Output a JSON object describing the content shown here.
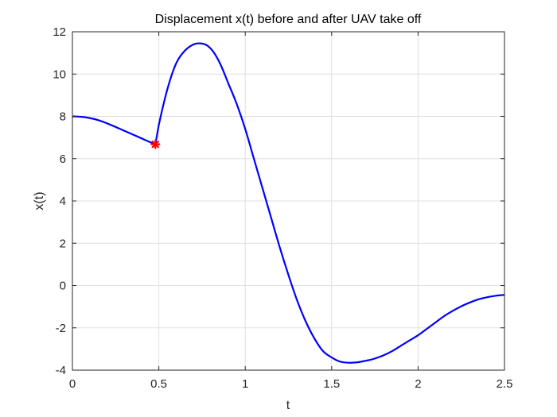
{
  "chart_data": {
    "type": "line",
    "title": "Displacement x(t) before and after UAV take off",
    "xlabel": "t",
    "ylabel": "x(t)",
    "xlim": [
      0,
      2.5
    ],
    "ylim": [
      -4,
      12
    ],
    "xticks": [
      0,
      0.5,
      1,
      1.5,
      2,
      2.5
    ],
    "xtick_labels": [
      "0",
      "0.5",
      "1",
      "1.5",
      "2",
      "2.5"
    ],
    "yticks": [
      -4,
      -2,
      0,
      2,
      4,
      6,
      8,
      10,
      12
    ],
    "ytick_labels": [
      "-4",
      "-2",
      "0",
      "2",
      "4",
      "6",
      "8",
      "10",
      "12"
    ],
    "grid": true,
    "colors": {
      "line": "#0000ff",
      "marker": "#ff0000",
      "grid": "#dfdfdf",
      "axis": "#262626"
    },
    "series": [
      {
        "x": [
          0,
          0.05,
          0.1,
          0.15,
          0.2,
          0.25,
          0.3,
          0.35,
          0.4,
          0.45,
          0.48,
          0.5,
          0.55,
          0.6,
          0.65,
          0.7,
          0.74,
          0.78,
          0.82,
          0.86,
          0.9,
          0.95,
          1.0,
          1.05,
          1.1,
          1.15,
          1.2,
          1.25,
          1.3,
          1.35,
          1.4,
          1.45,
          1.5,
          1.55,
          1.6,
          1.65,
          1.7,
          1.72,
          1.75,
          1.8,
          1.85,
          1.9,
          1.95,
          2.0,
          2.05,
          2.1,
          2.15,
          2.2,
          2.25,
          2.3,
          2.35,
          2.4,
          2.45,
          2.5
        ],
        "y": [
          8.0,
          7.98,
          7.92,
          7.82,
          7.67,
          7.5,
          7.32,
          7.14,
          6.96,
          6.78,
          6.68,
          7.6,
          9.3,
          10.5,
          11.1,
          11.4,
          11.45,
          11.35,
          11.0,
          10.4,
          9.6,
          8.6,
          7.4,
          6.0,
          4.6,
          3.2,
          1.8,
          0.5,
          -0.7,
          -1.7,
          -2.5,
          -3.1,
          -3.4,
          -3.6,
          -3.65,
          -3.63,
          -3.55,
          -3.52,
          -3.45,
          -3.3,
          -3.1,
          -2.85,
          -2.6,
          -2.35,
          -2.05,
          -1.75,
          -1.45,
          -1.2,
          -0.98,
          -0.8,
          -0.65,
          -0.55,
          -0.48,
          -0.44
        ]
      }
    ],
    "markers": [
      {
        "x": 0.48,
        "y": 6.68,
        "symbol": "*"
      }
    ]
  }
}
